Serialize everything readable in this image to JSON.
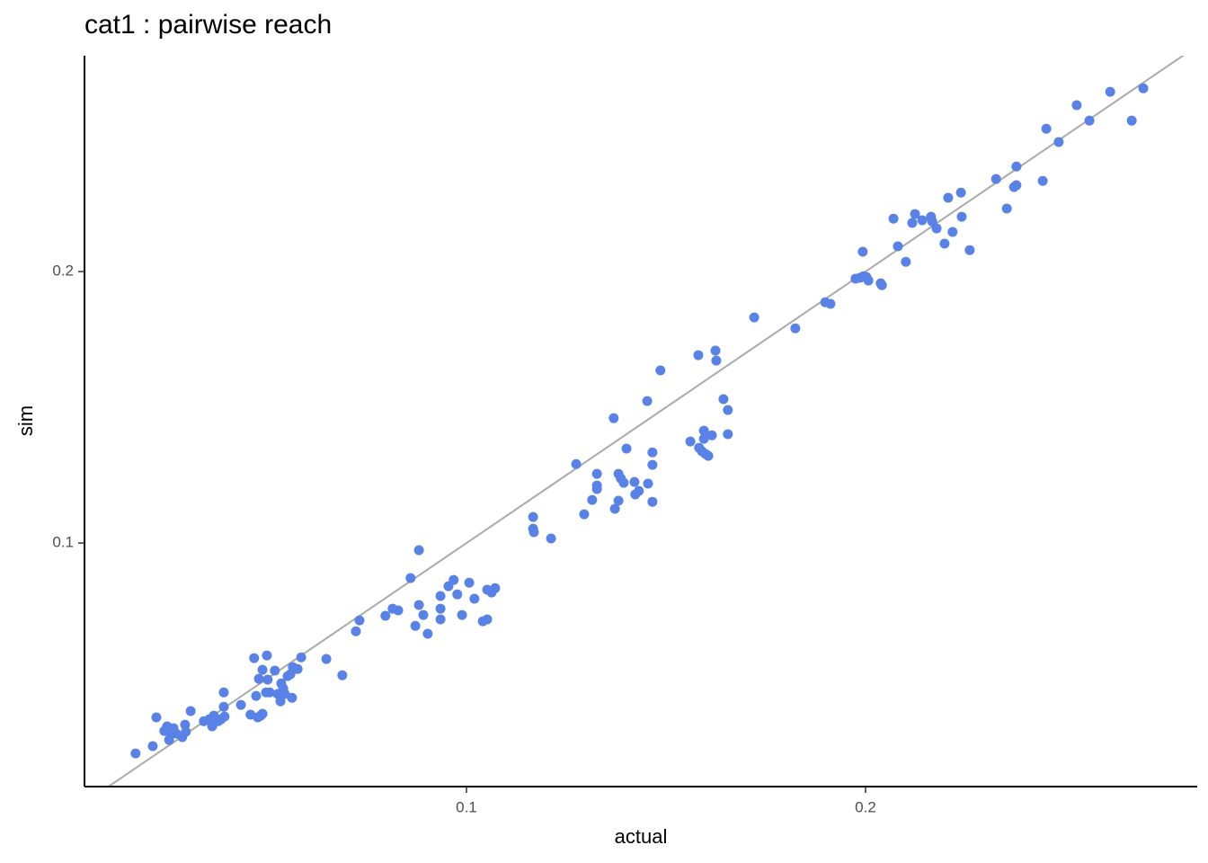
{
  "chart_data": {
    "type": "scatter",
    "title": "cat1 : pairwise reach",
    "x_label": "actual",
    "y_label": "sim",
    "color": "#5882e6",
    "identity_line": true,
    "identity_line_color": "#aaaaaa",
    "grid": false,
    "xlim": [
      0.0043,
      0.2831
    ],
    "ylim": [
      0.0103,
      0.2795
    ],
    "xticks": [
      0.1,
      0.2
    ],
    "yticks": [
      0.1,
      0.2
    ],
    "x": [
      0.0171,
      0.0214,
      0.0223,
      0.0243,
      0.025,
      0.0255,
      0.0259,
      0.0266,
      0.0273,
      0.0288,
      0.0295,
      0.0297,
      0.0309,
      0.0342,
      0.0356,
      0.0363,
      0.0367,
      0.0378,
      0.0385,
      0.0392,
      0.0392,
      0.0394,
      0.0435,
      0.0459,
      0.0468,
      0.0473,
      0.0477,
      0.048,
      0.0484,
      0.0489,
      0.0489,
      0.0498,
      0.05,
      0.0502,
      0.0507,
      0.052,
      0.0527,
      0.0534,
      0.0536,
      0.0541,
      0.0545,
      0.0552,
      0.0559,
      0.0563,
      0.0565,
      0.0577,
      0.0586,
      0.0649,
      0.0689,
      0.0723,
      0.0732,
      0.0797,
      0.0815,
      0.0829,
      0.086,
      0.0872,
      0.0881,
      0.0881,
      0.0892,
      0.0903,
      0.0935,
      0.0935,
      0.0935,
      0.0955,
      0.0968,
      0.0977,
      0.0989,
      0.1007,
      0.102,
      0.1041,
      0.1052,
      0.1052,
      0.1063,
      0.1072,
      0.1167,
      0.1167,
      0.1169,
      0.1212,
      0.1275,
      0.1295,
      0.1315,
      0.1327,
      0.1327,
      0.1327,
      0.1369,
      0.1372,
      0.1381,
      0.1381,
      0.1387,
      0.1394,
      0.1401,
      0.1421,
      0.1423,
      0.1432,
      0.1453,
      0.1455,
      0.1466,
      0.1466,
      0.1466,
      0.1486,
      0.1561,
      0.1581,
      0.1583,
      0.159,
      0.1595,
      0.1595,
      0.1599,
      0.1606,
      0.1615,
      0.1624,
      0.1626,
      0.1644,
      0.1655,
      0.1655,
      0.1721,
      0.1824,
      0.1899,
      0.1912,
      0.1975,
      0.1986,
      0.1993,
      0.1995,
      0.2002,
      0.2007,
      0.2038,
      0.2041,
      0.207,
      0.2081,
      0.2101,
      0.2117,
      0.2124,
      0.2142,
      0.2164,
      0.2167,
      0.2178,
      0.2198,
      0.2207,
      0.2218,
      0.2239,
      0.2241,
      0.2261,
      0.2327,
      0.2354,
      0.2372,
      0.2378,
      0.2378,
      0.2444,
      0.2453,
      0.2484,
      0.2529,
      0.2561,
      0.2613,
      0.2667,
      0.2696
    ],
    "values": [
      0.0225,
      0.0252,
      0.0358,
      0.0308,
      0.0325,
      0.0275,
      0.0301,
      0.0318,
      0.0298,
      0.0285,
      0.0331,
      0.0305,
      0.0381,
      0.0344,
      0.0351,
      0.0325,
      0.0364,
      0.0344,
      0.0351,
      0.045,
      0.0397,
      0.0361,
      0.0404,
      0.0368,
      0.0576,
      0.0437,
      0.0358,
      0.05,
      0.0364,
      0.0371,
      0.0533,
      0.045,
      0.0586,
      0.0497,
      0.045,
      0.053,
      0.0444,
      0.0417,
      0.0483,
      0.0464,
      0.0444,
      0.051,
      0.0517,
      0.043,
      0.0543,
      0.0536,
      0.0579,
      0.0573,
      0.0513,
      0.0675,
      0.0715,
      0.0732,
      0.0758,
      0.0752,
      0.0871,
      0.0695,
      0.0974,
      0.0772,
      0.0735,
      0.0666,
      0.0758,
      0.0719,
      0.0805,
      0.0841,
      0.0864,
      0.0811,
      0.0735,
      0.0854,
      0.0795,
      0.0712,
      0.0719,
      0.0828,
      0.0818,
      0.0834,
      0.1096,
      0.1053,
      0.104,
      0.1017,
      0.1291,
      0.1106,
      0.1159,
      0.1255,
      0.1212,
      0.1199,
      0.146,
      0.1126,
      0.1255,
      0.1156,
      0.1238,
      0.1222,
      0.1348,
      0.1225,
      0.1179,
      0.1192,
      0.1523,
      0.1219,
      0.1152,
      0.1334,
      0.1288,
      0.1636,
      0.1374,
      0.1692,
      0.1351,
      0.1338,
      0.1414,
      0.1384,
      0.1328,
      0.1321,
      0.1397,
      0.1709,
      0.1672,
      0.153,
      0.149,
      0.1401,
      0.1831,
      0.1791,
      0.1887,
      0.1881,
      0.1974,
      0.1977,
      0.2073,
      0.1983,
      0.198,
      0.1967,
      0.1957,
      0.195,
      0.2195,
      0.2093,
      0.2036,
      0.2179,
      0.2212,
      0.2189,
      0.2202,
      0.2185,
      0.2159,
      0.2103,
      0.2272,
      0.2146,
      0.2291,
      0.2202,
      0.2079,
      0.2341,
      0.2232,
      0.2311,
      0.2387,
      0.2318,
      0.2334,
      0.2526,
      0.2477,
      0.2613,
      0.2556,
      0.2662,
      0.2556,
      0.2675
    ]
  }
}
